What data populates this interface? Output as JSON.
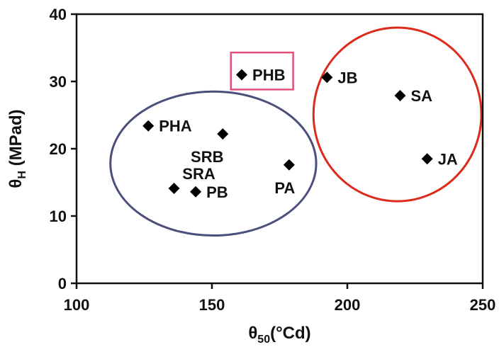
{
  "chart_data": {
    "type": "scatter",
    "xlabel": {
      "symbol": "θ",
      "sub": "50",
      "unit": "(°Cd)"
    },
    "ylabel": {
      "symbol": "θ",
      "sub": "H",
      "unit": " (MPad)"
    },
    "xlim": [
      100,
      250
    ],
    "ylim": [
      0,
      40
    ],
    "x_ticks": [
      100,
      150,
      200,
      250
    ],
    "y_ticks": [
      0,
      10,
      20,
      30,
      40
    ],
    "grid": false,
    "marker": "diamond",
    "marker_color": "#000000",
    "points": [
      {
        "label": "PHA",
        "x": 126.5,
        "y": 23.4,
        "label_pos": "right"
      },
      {
        "label": "PHB",
        "x": 161,
        "y": 31,
        "label_pos": "right"
      },
      {
        "label": "SRB",
        "x": 154,
        "y": 22.2,
        "label_pos": "below"
      },
      {
        "label": "SRA",
        "x": 136,
        "y": 14.1,
        "label_pos": "above"
      },
      {
        "label": "PB",
        "x": 144,
        "y": 13.6,
        "label_pos": "right"
      },
      {
        "label": "PA",
        "x": 178.5,
        "y": 17.6,
        "label_pos": "below"
      },
      {
        "label": "JB",
        "x": 192.5,
        "y": 30.6,
        "label_pos": "right"
      },
      {
        "label": "SA",
        "x": 219.5,
        "y": 27.9,
        "label_pos": "right"
      },
      {
        "label": "JA",
        "x": 229.5,
        "y": 18.5,
        "label_pos": "right"
      }
    ],
    "annotations": [
      {
        "kind": "ellipse",
        "color": "#4a4f7c",
        "cx": 150.5,
        "cy": 17.8,
        "rx": 38,
        "ry": 10.7
      },
      {
        "kind": "ellipse",
        "color": "#dd2a1b",
        "cx": 218.5,
        "cy": 25.1,
        "rx": 31,
        "ry": 12.9
      },
      {
        "kind": "rect",
        "color": "#e0507a",
        "x0": 157,
        "x1": 180,
        "y0": 28.8,
        "y1": 34.3
      }
    ]
  }
}
